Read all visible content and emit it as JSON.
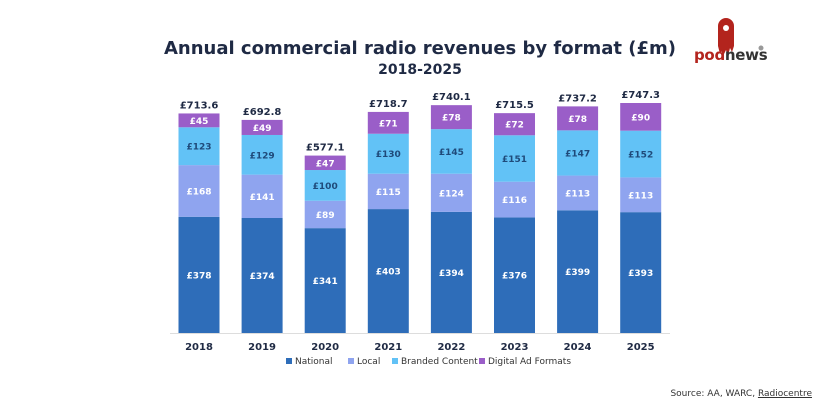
{
  "logo": {
    "text_part1": "pod",
    "text_part2": "news"
  },
  "source": {
    "prefix": "Source: AA, WARC,",
    "link": "Radiocentre"
  },
  "chart_data": {
    "type": "bar",
    "stacked": true,
    "title": "Annual commercial radio revenues by format (£m)",
    "subtitle": "2018-2025",
    "categories": [
      "2018",
      "2019",
      "2020",
      "2021",
      "2022",
      "2023",
      "2024",
      "2025"
    ],
    "totals": [
      "£713.6",
      "£692.8",
      "£577.1",
      "£718.7",
      "£740.1",
      "£715.5",
      "£737.2",
      "£747.3"
    ],
    "series": [
      {
        "name": "National",
        "color": "#2e6db9",
        "label_color": "#ffffff",
        "values": [
          378,
          374,
          341,
          403,
          394,
          376,
          399,
          393
        ]
      },
      {
        "name": "Local",
        "color": "#8fa4ef",
        "label_color": "#ffffff",
        "values": [
          168,
          141,
          89,
          115,
          124,
          116,
          113,
          113
        ]
      },
      {
        "name": "Branded Content",
        "color": "#62c2f6",
        "label_color": "#1f4a7a",
        "values": [
          123,
          129,
          100,
          130,
          145,
          151,
          147,
          152
        ]
      },
      {
        "name": "Digital Ad Formats",
        "color": "#9a5ec8",
        "label_color": "#ffffff",
        "values": [
          45,
          49,
          47,
          71,
          78,
          72,
          78,
          90
        ]
      }
    ],
    "value_prefix": "£",
    "legend": "bottom",
    "grid": false,
    "ylim": [
      0,
      750
    ]
  }
}
